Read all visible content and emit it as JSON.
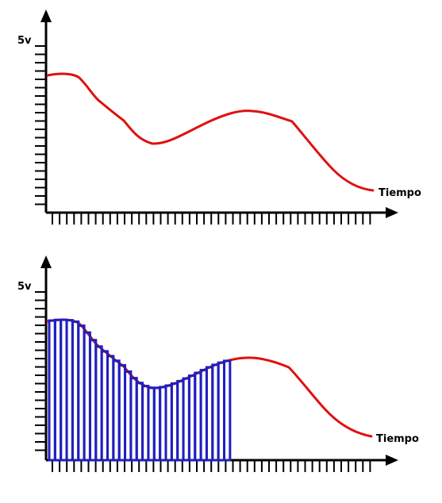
{
  "panels": [
    {
      "y_label": "5v",
      "x_label": "Tiempo"
    },
    {
      "y_label": "5v",
      "x_label": "Tiempo"
    }
  ],
  "colors": {
    "axis": "#000000",
    "curve": "#e01010",
    "bars": "#1f1fc0"
  },
  "bar_sample_fraction": 0.55
}
